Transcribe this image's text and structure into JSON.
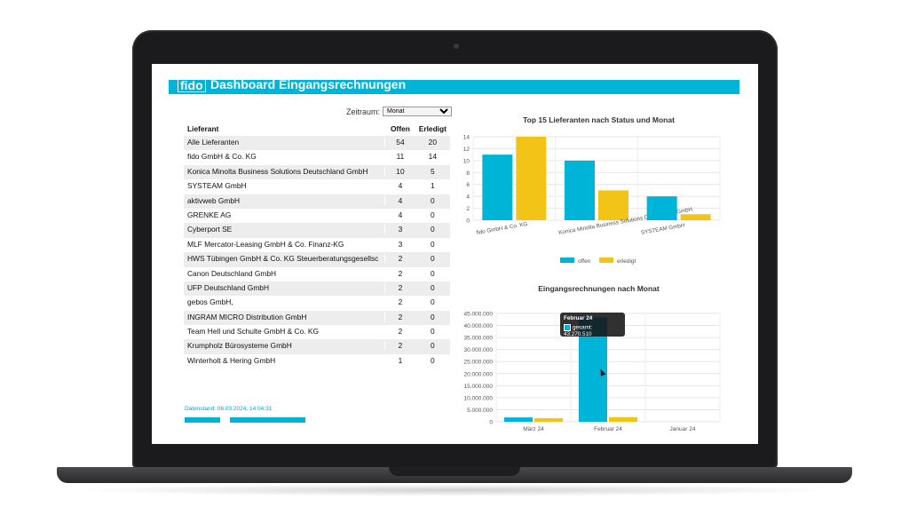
{
  "header": {
    "logo": "fido",
    "title": "Dashboard Eingangsrechnungen"
  },
  "filter": {
    "label": "Zeitraum:",
    "selected": "Monat"
  },
  "table": {
    "columns": [
      "Lieferant",
      "Offen",
      "Erledigt"
    ],
    "rows": [
      {
        "name": "Alle Lieferanten",
        "open": "54",
        "done": "20"
      },
      {
        "name": "fido GmbH & Co. KG",
        "open": "11",
        "done": "14"
      },
      {
        "name": "Konica Minolta Business Solutions Deutschland GmbH",
        "open": "10",
        "done": "5"
      },
      {
        "name": "SYSTEAM GmbH",
        "open": "4",
        "done": "1"
      },
      {
        "name": "aktivweb GmbH",
        "open": "4",
        "done": "0"
      },
      {
        "name": "GRENKE AG",
        "open": "4",
        "done": "0"
      },
      {
        "name": "Cyberport SE",
        "open": "3",
        "done": "0"
      },
      {
        "name": "MLF Mercator-Leasing GmbH & Co. Finanz-KG",
        "open": "3",
        "done": "0"
      },
      {
        "name": "HWS Tübingen GmbH & Co. KG Steuerberatungsgesellsc",
        "open": "2",
        "done": "0"
      },
      {
        "name": "Canon Deutschland GmbH",
        "open": "2",
        "done": "0"
      },
      {
        "name": "UFP Deutschland GmbH",
        "open": "2",
        "done": "0"
      },
      {
        "name": "gebos GmbH,",
        "open": "2",
        "done": "0"
      },
      {
        "name": "INGRAM MICRO Distribution GmbH",
        "open": "2",
        "done": "0"
      },
      {
        "name": "Team Hell und Schulte GmbH & Co. KG",
        "open": "2",
        "done": "0"
      },
      {
        "name": "Krumpholz Bürosysteme GmbH",
        "open": "2",
        "done": "0"
      },
      {
        "name": "Winterholt & Hering GmbH",
        "open": "1",
        "done": "0"
      }
    ]
  },
  "footer": {
    "datenstand": "Datenstand: 06.03.2024, 14:04:31"
  },
  "colors": {
    "offen": "#00b4d8",
    "erledigt": "#f2c418",
    "header": "#00b4d8"
  },
  "chart_data": [
    {
      "type": "bar",
      "title": "Top 15 Lieferanten nach Status und Monat",
      "categories": [
        "fido GmbH & Co. KG",
        "Konica Minolta Business Solutions Deutschland GmbH",
        "SYSTEAM GmbH"
      ],
      "series": [
        {
          "name": "offen",
          "values": [
            11,
            10,
            4
          ]
        },
        {
          "name": "erledigt",
          "values": [
            14,
            5,
            1
          ]
        }
      ],
      "ylim": [
        0,
        14
      ],
      "yticks": [
        "0",
        "2",
        "4",
        "6",
        "8",
        "10",
        "12",
        "14"
      ],
      "legend": "bottom",
      "grid": true
    },
    {
      "type": "bar",
      "title": "Eingangsrechnungen nach Monat",
      "categories": [
        "März 24",
        "Februar 24",
        "Januar 24"
      ],
      "series": [
        {
          "values": [
            1800000,
            43270510,
            0
          ]
        },
        {
          "values": [
            1500000,
            1900000,
            0
          ]
        }
      ],
      "ylim": [
        0,
        45000000
      ],
      "yticks": [
        "0",
        "5.000.000",
        "10.000.000",
        "15.000.000",
        "20.000.000",
        "25.000.000",
        "30.000.000",
        "35.000.000",
        "40.000.000",
        "45.000.000"
      ],
      "grid": true,
      "tooltip": {
        "title": "Februar 24",
        "label": "gesamt: 43.270.510"
      }
    }
  ]
}
